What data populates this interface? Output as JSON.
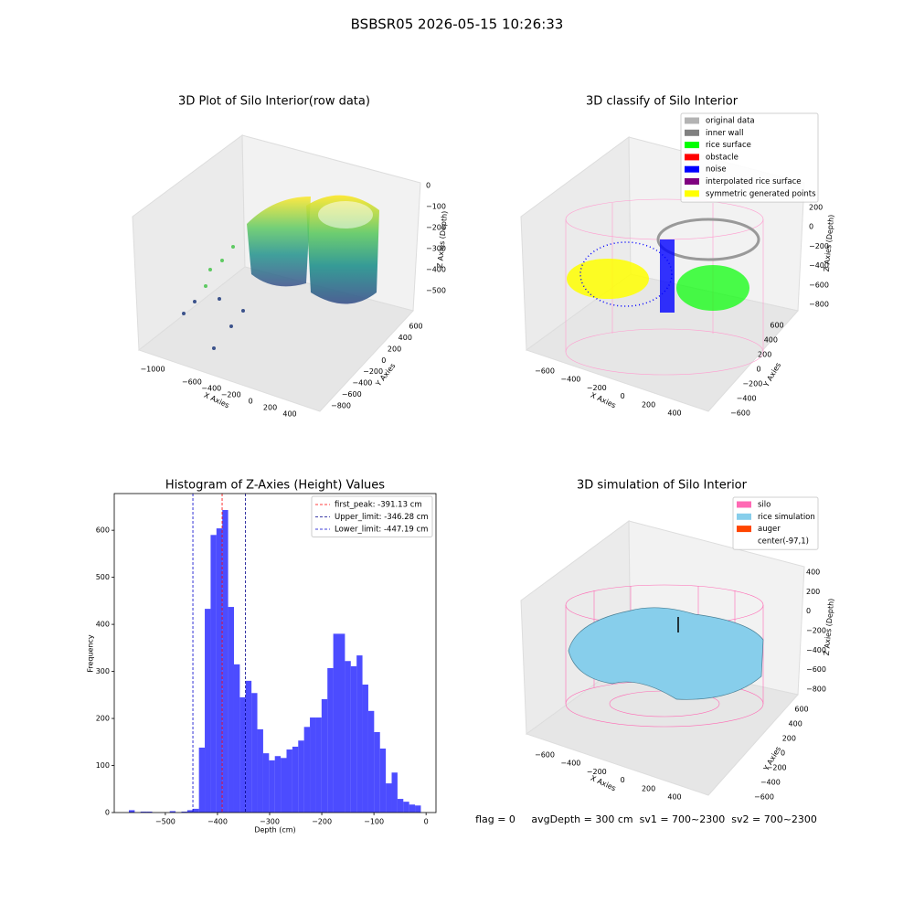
{
  "title": "BSBSR05 2026-05-15 10:26:33",
  "footer": "flag = 0     avgDepth = 300 cm  sv1 = 700~2300  sv2 = 700~2300",
  "chart_data": [
    {
      "type": "scatter3d",
      "title": "3D Plot of Silo Interior(row data)",
      "xlabel": "X Axies",
      "ylabel": "Y Axies",
      "zlabel": "Z Axies (Depth)",
      "xticks": [
        {
          "value": -1000,
          "label": "−1000"
        },
        {
          "value": -600,
          "label": "−600"
        },
        {
          "value": -400,
          "label": "−400"
        },
        {
          "value": -200,
          "label": "−200"
        },
        0,
        200,
        400
      ],
      "yticks": [
        600,
        400,
        200,
        0,
        {
          "value": -200,
          "label": "−200"
        },
        {
          "value": -400,
          "label": "−400"
        },
        {
          "value": -600,
          "label": "−600"
        },
        {
          "value": -800,
          "label": "−800"
        }
      ],
      "zticks": [
        0,
        {
          "value": -100,
          "label": "−100"
        },
        {
          "value": -200,
          "label": "−200"
        },
        {
          "value": -300,
          "label": "−300"
        },
        {
          "value": -400,
          "label": "−400"
        },
        {
          "value": -500,
          "label": "−500"
        }
      ]
    },
    {
      "type": "scatter3d",
      "title": "3D classify of Silo Interior",
      "xlabel": "X Axies",
      "ylabel": "Y Axies",
      "zlabel": "Z Axies (Depth)",
      "xticks": [
        {
          "value": -600,
          "label": "−600"
        },
        {
          "value": -400,
          "label": "−400"
        },
        {
          "value": -200,
          "label": "−200"
        },
        0,
        200,
        400
      ],
      "yticks": [
        600,
        400,
        200,
        0,
        {
          "value": -200,
          "label": "−200"
        },
        {
          "value": -400,
          "label": "−400"
        },
        {
          "value": -600,
          "label": "−600"
        }
      ],
      "zticks": [
        200,
        0,
        {
          "value": -200,
          "label": "−200"
        },
        {
          "value": -400,
          "label": "−400"
        },
        {
          "value": -600,
          "label": "−600"
        },
        {
          "value": -800,
          "label": "−800"
        }
      ],
      "legend": [
        {
          "name": "original data",
          "color": "#b3b3b3"
        },
        {
          "name": "inner wall",
          "color": "#808080"
        },
        {
          "name": "rice surface",
          "color": "#00ff00"
        },
        {
          "name": "obstacle",
          "color": "#ff0000"
        },
        {
          "name": "noise",
          "color": "#0000ff"
        },
        {
          "name": "interpolated rice surface",
          "color": "#800080"
        },
        {
          "name": "symmetric generated points",
          "color": "#ffff00"
        }
      ]
    },
    {
      "type": "histogram",
      "title": "Histogram of Z-Axies (Height) Values",
      "xlabel": "Depth (cm)",
      "ylabel": "Frequency",
      "color": "#0000ff",
      "alpha": 0.7,
      "bins": [
        -570,
        -558.8,
        -547.6,
        -536.4,
        -525.2,
        -514,
        -502.8,
        -491.6,
        -480.4,
        -469.2,
        -458,
        -446.8,
        -435.6,
        -424.4,
        -413.2,
        -402,
        -390.8,
        -379.6,
        -368.4,
        -357.2,
        -346,
        -334.8,
        -323.6,
        -312.4,
        -301.2,
        -290,
        -278.8,
        -267.6,
        -256.4,
        -245.2,
        -234,
        -222.8,
        -211.6,
        -200.4,
        -189.2,
        -178,
        -166.8,
        -155.6,
        -144.4,
        -133.2,
        -122,
        -110.8,
        -99.6,
        -88.4,
        -77.2,
        -66,
        -54.8,
        -43.6,
        -32.4,
        -21.2,
        -10
      ],
      "values": [
        5,
        0,
        2,
        2,
        0,
        0,
        0,
        3,
        0,
        2,
        5,
        8,
        138,
        433,
        590,
        604,
        643,
        437,
        315,
        245,
        280,
        254,
        177,
        126,
        111,
        120,
        116,
        134,
        140,
        153,
        182,
        202,
        202,
        241,
        307,
        380,
        380,
        322,
        311,
        334,
        272,
        216,
        171,
        136,
        62,
        85,
        29,
        23,
        17,
        15
      ],
      "xlim": [
        -598,
        19
      ],
      "ylim": [
        0,
        678
      ],
      "xticks": [
        {
          "value": -500,
          "label": "−500"
        },
        {
          "value": -400,
          "label": "−400"
        },
        {
          "value": -300,
          "label": "−300"
        },
        {
          "value": -200,
          "label": "−200"
        },
        {
          "value": -100,
          "label": "−100"
        },
        0
      ],
      "yticks": [
        0,
        100,
        200,
        300,
        400,
        500,
        600
      ],
      "vlines": [
        {
          "value": -391.13,
          "label": "first_peak: -391.13 cm",
          "color": "#ff0000"
        },
        {
          "value": -346.28,
          "label": "Upper_limit: -346.28 cm",
          "color": "#00008b"
        },
        {
          "value": -447.19,
          "label": "Lower_limit: -447.19 cm",
          "color": "#0000cd"
        }
      ],
      "legend_loc": "upper right"
    },
    {
      "type": "surface3d",
      "title": "3D simulation of Silo Interior",
      "xlabel": "X Axies",
      "ylabel": "Y Axies",
      "zlabel": "Z Axies (Depth)",
      "xticks": [
        {
          "value": -600,
          "label": "−600"
        },
        {
          "value": -400,
          "label": "−400"
        },
        {
          "value": -200,
          "label": "−200"
        },
        0,
        200,
        400
      ],
      "yticks": [
        600,
        400,
        200,
        0,
        {
          "value": -200,
          "label": "−200"
        },
        {
          "value": -400,
          "label": "−400"
        },
        {
          "value": -600,
          "label": "−600"
        }
      ],
      "zticks": [
        400,
        200,
        0,
        {
          "value": -200,
          "label": "−200"
        },
        {
          "value": -400,
          "label": "−400"
        },
        {
          "value": -600,
          "label": "−600"
        },
        {
          "value": -800,
          "label": "−800"
        }
      ],
      "legend": [
        {
          "name": "silo",
          "color": "#ff69b4"
        },
        {
          "name": "rice simulation",
          "color": "#87ceeb"
        },
        {
          "name": "auger",
          "color": "#ff4500"
        },
        {
          "name": "center(-97,1)",
          "color": "#ffffff"
        }
      ]
    }
  ]
}
